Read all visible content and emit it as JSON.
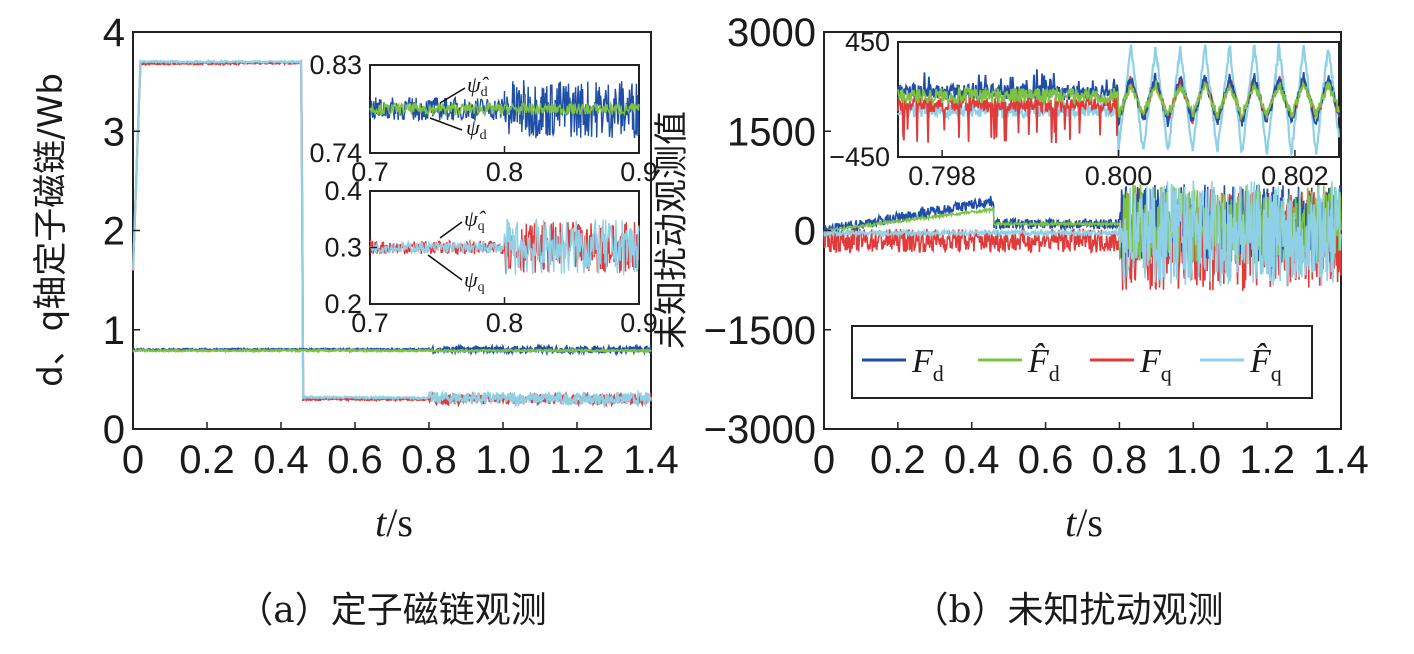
{
  "chart_data": [
    {
      "id": "a",
      "type": "line",
      "caption": "（a）定子磁链观测",
      "xlabel_italic": "t",
      "xlabel_rest": "/s",
      "ylabel": "d、q轴定子磁链/Wb",
      "xlim": [
        0,
        1.4
      ],
      "ylim": [
        0,
        4
      ],
      "xticks": [
        "0",
        "0.2",
        "0.4",
        "0.6",
        "0.8",
        "1.0",
        "1.2",
        "1.4"
      ],
      "yticks": [
        "0",
        "1",
        "2",
        "3",
        "4"
      ],
      "series": [
        {
          "name": "ψd",
          "color": "#1f4ea6",
          "points": [
            [
              0,
              0.8
            ],
            [
              1.4,
              0.8
            ]
          ],
          "noise_from": 0.8,
          "noise_amp": 0.03
        },
        {
          "name": "ψ̂d",
          "color": "#7dc242",
          "points": [
            [
              0,
              0.79
            ],
            [
              1.4,
              0.79
            ]
          ]
        },
        {
          "name": "ψq",
          "color": "#e03a3a",
          "points": [
            [
              0,
              1.6
            ],
            [
              0.02,
              3.68
            ],
            [
              0.455,
              3.69
            ],
            [
              0.46,
              0.3
            ],
            [
              1.4,
              0.3
            ]
          ],
          "noise_from": 0.8,
          "noise_amp": 0.05
        },
        {
          "name": "ψ̂q",
          "color": "#8fd0e6",
          "points": [
            [
              0,
              1.6
            ],
            [
              0.02,
              3.7
            ],
            [
              0.455,
              3.7
            ],
            [
              0.46,
              0.32
            ],
            [
              1.4,
              0.3
            ]
          ],
          "noise_from": 0.8,
          "noise_amp": 0.06
        }
      ],
      "insets": [
        {
          "xlim": [
            0.7,
            0.9
          ],
          "ylim": [
            0.74,
            0.83
          ],
          "xticks": [
            "0.7",
            "0.8",
            "0.9"
          ],
          "yticks": [
            "0.74",
            "0.83"
          ],
          "ann_hat": "ψ̂",
          "ann_hat_sub": "d",
          "ann": "ψ",
          "ann_sub": "d",
          "series": [
            {
              "name": "ψd",
              "color": "#1f4ea6",
              "center": 0.785,
              "amp_before": 0.012,
              "amp_after": 0.03
            },
            {
              "name": "ψ̂d",
              "color": "#7dc242",
              "center": 0.785,
              "amp_before": 0.006,
              "amp_after": 0.006
            }
          ]
        },
        {
          "xlim": [
            0.7,
            0.9
          ],
          "ylim": [
            0.2,
            0.4
          ],
          "xticks": [
            "0.7",
            "0.8",
            "0.9"
          ],
          "yticks": [
            "0.2",
            "0.3",
            "0.4"
          ],
          "ann_hat": "ψ̂",
          "ann_hat_sub": "q",
          "ann": "ψ",
          "ann_sub": "q",
          "series": [
            {
              "name": "ψq",
              "color": "#e03a3a",
              "center": 0.3,
              "amp_before": 0.012,
              "amp_after": 0.045
            },
            {
              "name": "ψ̂q",
              "color": "#8fd0e6",
              "center": 0.3,
              "amp_before": 0.01,
              "amp_after": 0.05
            }
          ]
        }
      ]
    },
    {
      "id": "b",
      "type": "line",
      "caption": "（b）未知扰动观测",
      "xlabel_italic": "t",
      "xlabel_rest": "/s",
      "ylabel": "未知扰动观测值",
      "xlim": [
        0,
        1.4
      ],
      "ylim": [
        -3000,
        3000
      ],
      "xticks": [
        "0",
        "0.2",
        "0.4",
        "0.6",
        "0.8",
        "1.0",
        "1.2",
        "1.4"
      ],
      "yticks": [
        "−3000",
        "−1500",
        "0",
        "1500",
        "3000"
      ],
      "legend": {
        "placement": "lower-right",
        "entries": [
          "F_d",
          "F̂_d",
          "F_q",
          "F̂_q"
        ]
      },
      "series": [
        {
          "name": "F_d",
          "color": "#1f4ea6",
          "trend": [
            [
              0,
              0
            ],
            [
              0.46,
              450
            ],
            [
              0.46,
              100
            ],
            [
              0.8,
              100
            ],
            [
              1.4,
              100
            ]
          ],
          "amp_before": 80,
          "amp_after": 600
        },
        {
          "name": "F̂_d",
          "color": "#7dc242",
          "trend": [
            [
              0,
              0
            ],
            [
              0.46,
              320
            ],
            [
              0.46,
              100
            ],
            [
              0.8,
              100
            ],
            [
              1.4,
              100
            ]
          ],
          "amp_before": 20,
          "amp_after": 600
        },
        {
          "name": "F_q",
          "color": "#e03a3a",
          "trend": [
            [
              0,
              -150
            ],
            [
              1.4,
              -150
            ]
          ],
          "amp_before": 180,
          "amp_after": 800
        },
        {
          "name": "F̂_q",
          "color": "#8fd0e6",
          "trend": [
            [
              0,
              -40
            ],
            [
              1.4,
              -40
            ]
          ],
          "amp_before": 40,
          "amp_after": 800
        }
      ],
      "inset": {
        "xlim": [
          0.7975,
          0.8025
        ],
        "ylim": [
          -450,
          450
        ],
        "xticks": [
          "0.798",
          "0.800",
          "0.802"
        ],
        "yticks": [
          "−450",
          "450"
        ]
      }
    }
  ]
}
